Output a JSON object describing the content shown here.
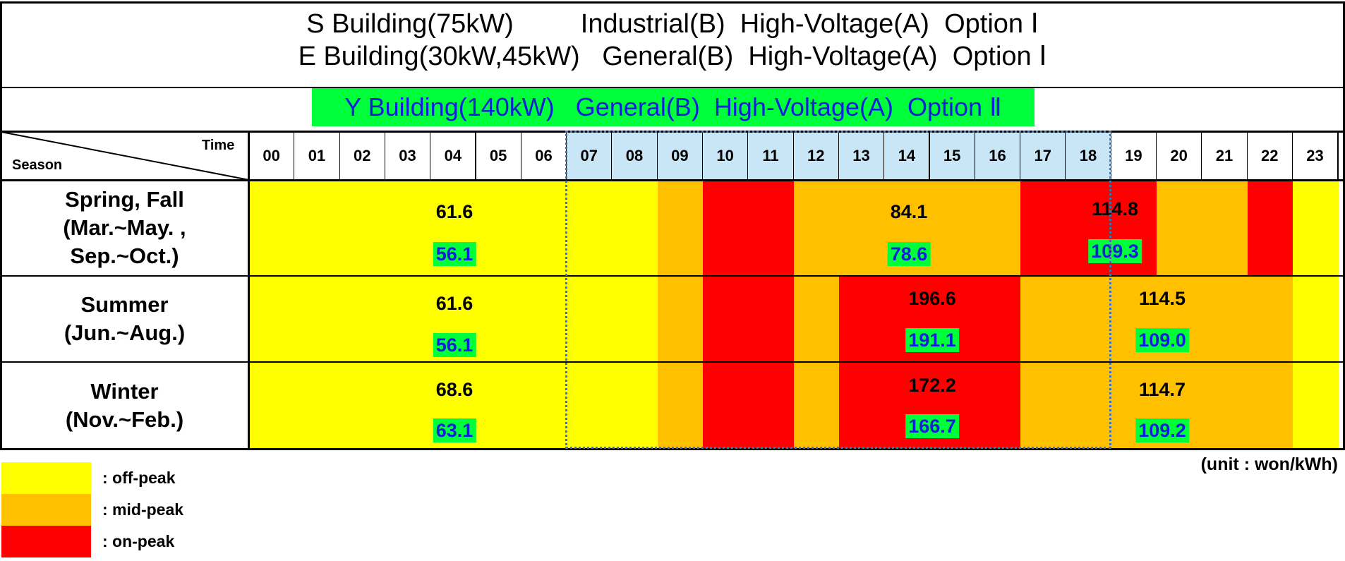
{
  "title": {
    "line1": "S Building(75kW)         Industrial(B)  High-Voltage(A)  Option Ⅰ",
    "line2": "E Building(30kW,45kW)   General(B)  High-Voltage(A)  Option Ⅰ",
    "highlight": "Y Building(140kW)   General(B)  High-Voltage(A)  Option Ⅱ"
  },
  "header": {
    "time_label": "Time",
    "season_label": "Season",
    "hours": [
      "00",
      "01",
      "02",
      "03",
      "04",
      "05",
      "06",
      "07",
      "08",
      "09",
      "10",
      "11",
      "12",
      "13",
      "14",
      "15",
      "16",
      "17",
      "18",
      "19",
      "20",
      "21",
      "22",
      "23"
    ]
  },
  "colors": {
    "off_peak": "#ffff00",
    "mid_peak": "#ffc000",
    "on_peak": "#ff0000",
    "highlight_green": "#00ff3b",
    "highlight_text": "#1020d8",
    "header_highlight": "#c9e6f7",
    "dotted_frame": "#4a6f9b"
  },
  "seasons": [
    {
      "name": "Spring, Fall",
      "months_line1": "(Mar.~May. ,",
      "months_line2": "Sep.~Oct.)",
      "schedule": [
        "off",
        "off",
        "off",
        "off",
        "off",
        "off",
        "off",
        "off",
        "off",
        "mid",
        "on",
        "on",
        "mid",
        "mid",
        "mid",
        "mid",
        "mid",
        "on",
        "on",
        "on",
        "mid",
        "mid",
        "on",
        "off"
      ],
      "prices": {
        "off_peak": "61.6",
        "off_peak_y": "56.1",
        "mid_peak": "84.1",
        "mid_peak_y": "78.6",
        "on_peak": "114.8",
        "on_peak_y": "109.3"
      }
    },
    {
      "name": "Summer",
      "months_line1": "(Jun.~Aug.)",
      "months_line2": "",
      "schedule": [
        "off",
        "off",
        "off",
        "off",
        "off",
        "off",
        "off",
        "off",
        "off",
        "mid",
        "on",
        "on",
        "mid",
        "on",
        "on",
        "on",
        "on",
        "mid",
        "mid",
        "mid",
        "mid",
        "mid",
        "mid",
        "off"
      ],
      "prices": {
        "off_peak": "61.6",
        "off_peak_y": "56.1",
        "mid_peak": "114.5",
        "mid_peak_y": "109.0",
        "on_peak": "196.6",
        "on_peak_y": "191.1"
      }
    },
    {
      "name": "Winter",
      "months_line1": "(Nov.~Feb.)",
      "months_line2": "",
      "schedule": [
        "off",
        "off",
        "off",
        "off",
        "off",
        "off",
        "off",
        "off",
        "off",
        "mid",
        "on",
        "on",
        "mid",
        "on",
        "on",
        "on",
        "on",
        "mid",
        "mid",
        "mid",
        "mid",
        "mid",
        "mid",
        "off"
      ],
      "prices": {
        "off_peak": "68.6",
        "off_peak_y": "63.1",
        "mid_peak": "114.7",
        "mid_peak_y": "109.2",
        "on_peak": "172.2",
        "on_peak_y": "166.7"
      }
    }
  ],
  "legend": [
    {
      "key": "off",
      "label": ": off-peak"
    },
    {
      "key": "mid",
      "label": ": mid-peak"
    },
    {
      "key": "on",
      "label": ": on-peak"
    }
  ],
  "unit": "(unit : won/kWh)"
}
